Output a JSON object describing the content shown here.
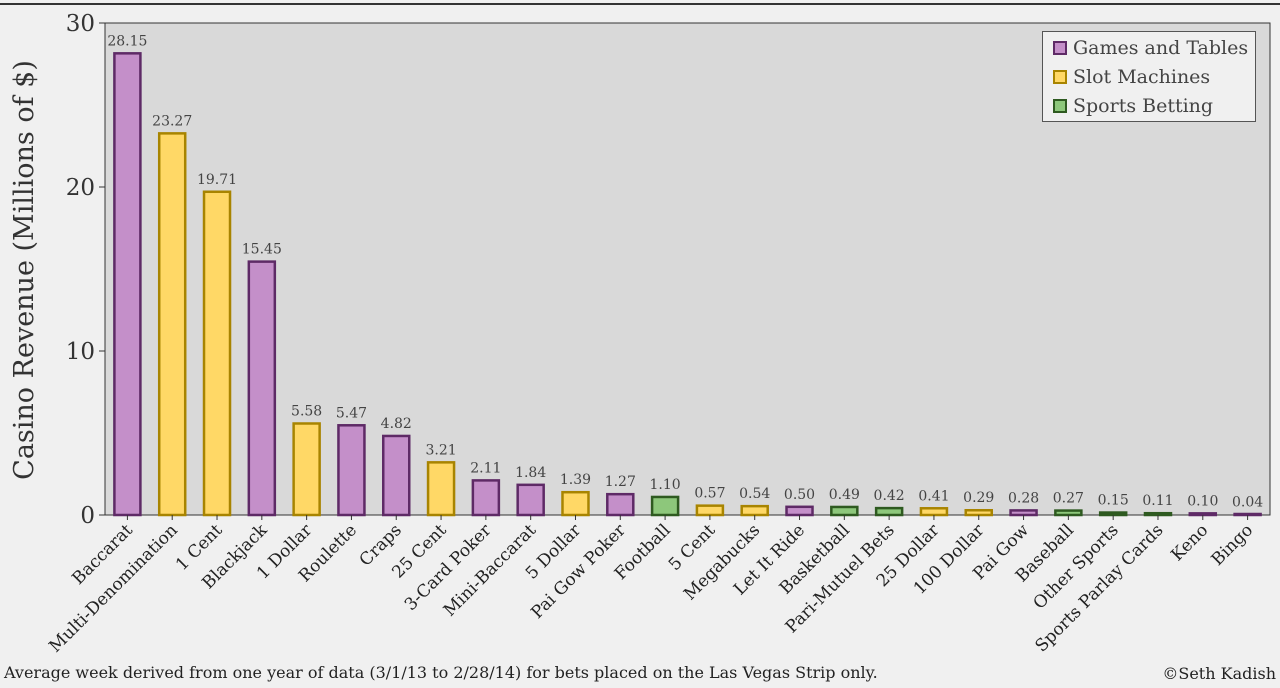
{
  "chart_data": {
    "type": "bar",
    "ylabel": "Casino Revenue (Millions of $)",
    "ylim": [
      0,
      30
    ],
    "yticks": [
      0,
      10,
      20,
      30
    ],
    "grid": false,
    "legend_position": "top-right",
    "series_names": [
      "Games and Tables",
      "Slot Machines",
      "Sports Betting"
    ],
    "colors": {
      "Games and Tables": {
        "fill": "#c48fc9",
        "stroke": "#5e2a66"
      },
      "Slot Machines": {
        "fill": "#ffd866",
        "stroke": "#a88400"
      },
      "Sports Betting": {
        "fill": "#8dc77b",
        "stroke": "#2e5a20"
      }
    },
    "bars": [
      {
        "label": "Baccarat",
        "value": 28.15,
        "value_label": "28.15",
        "group": "Games and Tables"
      },
      {
        "label": "Multi-Denomination",
        "value": 23.27,
        "value_label": "23.27",
        "group": "Slot Machines"
      },
      {
        "label": "1 Cent",
        "value": 19.71,
        "value_label": "19.71",
        "group": "Slot Machines"
      },
      {
        "label": "Blackjack",
        "value": 15.45,
        "value_label": "15.45",
        "group": "Games and Tables"
      },
      {
        "label": "1 Dollar",
        "value": 5.58,
        "value_label": "5.58",
        "group": "Slot Machines"
      },
      {
        "label": "Roulette",
        "value": 5.47,
        "value_label": "5.47",
        "group": "Games and Tables"
      },
      {
        "label": "Craps",
        "value": 4.82,
        "value_label": "4.82",
        "group": "Games and Tables"
      },
      {
        "label": "25 Cent",
        "value": 3.21,
        "value_label": "3.21",
        "group": "Slot Machines"
      },
      {
        "label": "3-Card Poker",
        "value": 2.11,
        "value_label": "2.11",
        "group": "Games and Tables"
      },
      {
        "label": "Mini-Baccarat",
        "value": 1.84,
        "value_label": "1.84",
        "group": "Games and Tables"
      },
      {
        "label": "5 Dollar",
        "value": 1.39,
        "value_label": "1.39",
        "group": "Slot Machines"
      },
      {
        "label": "Pai Gow Poker",
        "value": 1.27,
        "value_label": "1.27",
        "group": "Games and Tables"
      },
      {
        "label": "Football",
        "value": 1.1,
        "value_label": "1.10",
        "group": "Sports Betting"
      },
      {
        "label": "5 Cent",
        "value": 0.57,
        "value_label": "0.57",
        "group": "Slot Machines"
      },
      {
        "label": "Megabucks",
        "value": 0.54,
        "value_label": "0.54",
        "group": "Slot Machines"
      },
      {
        "label": "Let It Ride",
        "value": 0.5,
        "value_label": "0.50",
        "group": "Games and Tables"
      },
      {
        "label": "Basketball",
        "value": 0.49,
        "value_label": "0.49",
        "group": "Sports Betting"
      },
      {
        "label": "Pari-Mutuel Bets",
        "value": 0.42,
        "value_label": "0.42",
        "group": "Sports Betting"
      },
      {
        "label": "25 Dollar",
        "value": 0.41,
        "value_label": "0.41",
        "group": "Slot Machines"
      },
      {
        "label": "100 Dollar",
        "value": 0.29,
        "value_label": "0.29",
        "group": "Slot Machines"
      },
      {
        "label": "Pai Gow",
        "value": 0.28,
        "value_label": "0.28",
        "group": "Games and Tables"
      },
      {
        "label": "Baseball",
        "value": 0.27,
        "value_label": "0.27",
        "group": "Sports Betting"
      },
      {
        "label": "Other Sports",
        "value": 0.15,
        "value_label": "0.15",
        "group": "Sports Betting"
      },
      {
        "label": "Sports Parlay Cards",
        "value": 0.11,
        "value_label": "0.11",
        "group": "Sports Betting"
      },
      {
        "label": "Keno",
        "value": 0.1,
        "value_label": "0.10",
        "group": "Games and Tables"
      },
      {
        "label": "Bingo",
        "value": 0.04,
        "value_label": "0.04",
        "group": "Games and Tables"
      }
    ]
  },
  "footnote": "Average week derived from one year of data (3/1/13 to 2/28/14) for bets placed on the Las Vegas Strip only.",
  "credit": "©Seth Kadish"
}
